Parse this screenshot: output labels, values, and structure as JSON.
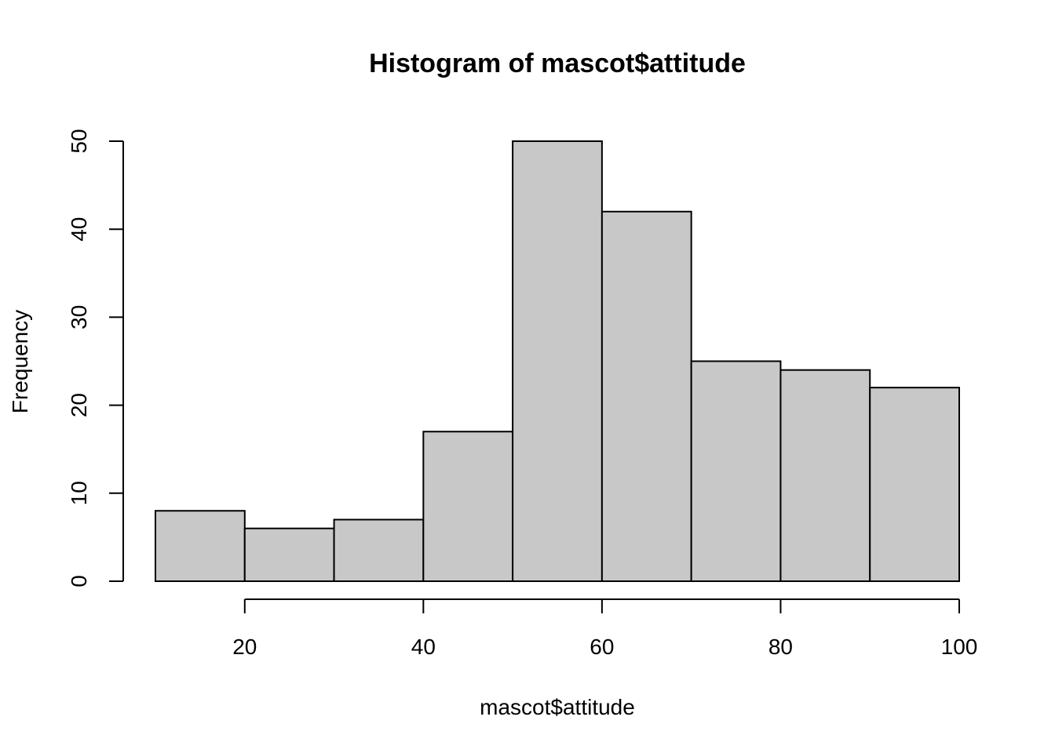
{
  "chart_data": {
    "type": "bar",
    "title": "Histogram of mascot$attitude",
    "xlabel": "mascot$attitude",
    "ylabel": "Frequency",
    "bins": [
      {
        "start": 10,
        "end": 20,
        "value": 8
      },
      {
        "start": 20,
        "end": 30,
        "value": 6
      },
      {
        "start": 30,
        "end": 40,
        "value": 7
      },
      {
        "start": 40,
        "end": 50,
        "value": 17
      },
      {
        "start": 50,
        "end": 60,
        "value": 50
      },
      {
        "start": 60,
        "end": 70,
        "value": 42
      },
      {
        "start": 70,
        "end": 80,
        "value": 25
      },
      {
        "start": 80,
        "end": 90,
        "value": 24
      },
      {
        "start": 90,
        "end": 100,
        "value": 22
      }
    ],
    "xlim": [
      10,
      100
    ],
    "ylim": [
      0,
      50
    ],
    "x_ticks": [
      "20",
      "40",
      "60",
      "80",
      "100"
    ],
    "y_ticks": [
      "0",
      "10",
      "20",
      "30",
      "40",
      "50"
    ],
    "bar_color": "#c8c8c8",
    "grid": false
  }
}
